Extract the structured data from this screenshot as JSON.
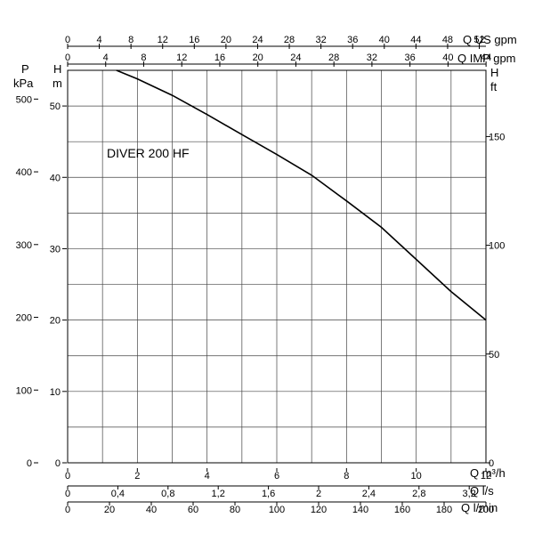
{
  "chart_data": {
    "type": "line",
    "series": [
      {
        "name": "DIVER 200 HF",
        "x": [
          1.4,
          2,
          3,
          4,
          5,
          6,
          7,
          8,
          9,
          10,
          11,
          12
        ],
        "y": [
          55,
          53.8,
          51.5,
          48.8,
          46,
          43.2,
          40.3,
          36.7,
          33,
          28.5,
          24,
          20
        ]
      }
    ],
    "xlim": [
      0,
      12
    ],
    "ylim": [
      0,
      55
    ],
    "grid": true,
    "axes": {
      "bottom": [
        {
          "label": "Q m³/h",
          "ticks": [
            "0",
            "2",
            "4",
            "6",
            "8",
            "10",
            "12"
          ]
        },
        {
          "label": "Q l/s",
          "ticks": [
            "0",
            "0,4",
            "0,8",
            "1,2",
            "1,6",
            "2",
            "2,4",
            "2,8",
            "3,2"
          ]
        },
        {
          "label": "Q l/min",
          "ticks": [
            "0",
            "20",
            "40",
            "60",
            "80",
            "100",
            "120",
            "140",
            "160",
            "180",
            "200"
          ]
        }
      ],
      "top": [
        {
          "label": "Q US gpm",
          "ticks": [
            "0",
            "4",
            "8",
            "12",
            "16",
            "20",
            "24",
            "28",
            "32",
            "36",
            "40",
            "44",
            "48",
            "52"
          ]
        },
        {
          "label": "Q IMP gpm",
          "ticks": [
            "0",
            "4",
            "8",
            "12",
            "16",
            "20",
            "24",
            "28",
            "32",
            "36",
            "40",
            "44"
          ]
        }
      ],
      "left": [
        {
          "label_top": "P",
          "label_bottom": "kPa",
          "ticks": [
            "0",
            "100",
            "200",
            "300",
            "400",
            "500"
          ]
        },
        {
          "label_top": "H",
          "label_bottom": "m",
          "ticks": [
            "0",
            "10",
            "20",
            "30",
            "40",
            "50"
          ]
        }
      ],
      "right": [
        {
          "label_top": "H",
          "label_bottom": "ft",
          "ticks": [
            "0",
            "50",
            "100",
            "150"
          ]
        }
      ]
    }
  }
}
